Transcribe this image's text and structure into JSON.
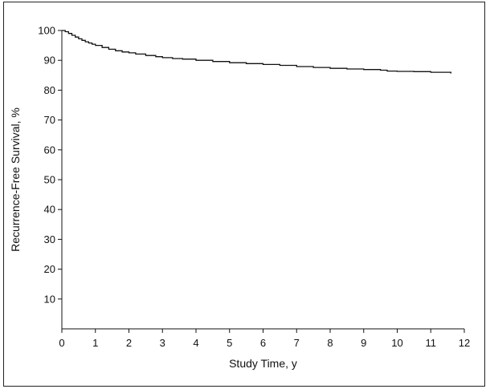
{
  "chart_data": {
    "type": "line",
    "title": "",
    "xlabel": "Study Time, y",
    "ylabel": "Recurrence-Free Survival, %",
    "xlim": [
      0,
      12
    ],
    "ylim": [
      0,
      100
    ],
    "x_ticks": [
      0,
      1,
      2,
      3,
      4,
      5,
      6,
      7,
      8,
      9,
      10,
      11,
      12
    ],
    "y_ticks": [
      10,
      20,
      30,
      40,
      50,
      60,
      70,
      80,
      90,
      100
    ],
    "grid": false,
    "legend": "none",
    "step": true,
    "series": [
      {
        "x": [
          0,
          0.1,
          0.2,
          0.3,
          0.4,
          0.5,
          0.6,
          0.7,
          0.8,
          0.9,
          1.0,
          1.2,
          1.4,
          1.6,
          1.8,
          2.0,
          2.2,
          2.5,
          2.8,
          3.0,
          3.3,
          3.6,
          4.0,
          4.5,
          5.0,
          5.5,
          6.0,
          6.5,
          7.0,
          7.5,
          8.0,
          8.5,
          9.0,
          9.5,
          9.7,
          10.0,
          10.5,
          11.0,
          11.6
        ],
        "y": [
          100,
          99.6,
          99.0,
          98.4,
          97.8,
          97.2,
          96.7,
          96.2,
          95.8,
          95.4,
          95.0,
          94.3,
          93.7,
          93.2,
          92.8,
          92.5,
          92.1,
          91.6,
          91.2,
          90.9,
          90.6,
          90.4,
          90.0,
          89.6,
          89.2,
          88.9,
          88.6,
          88.3,
          87.9,
          87.6,
          87.3,
          87.1,
          86.9,
          86.7,
          86.4,
          86.3,
          86.2,
          86.0,
          85.6
        ]
      }
    ]
  }
}
